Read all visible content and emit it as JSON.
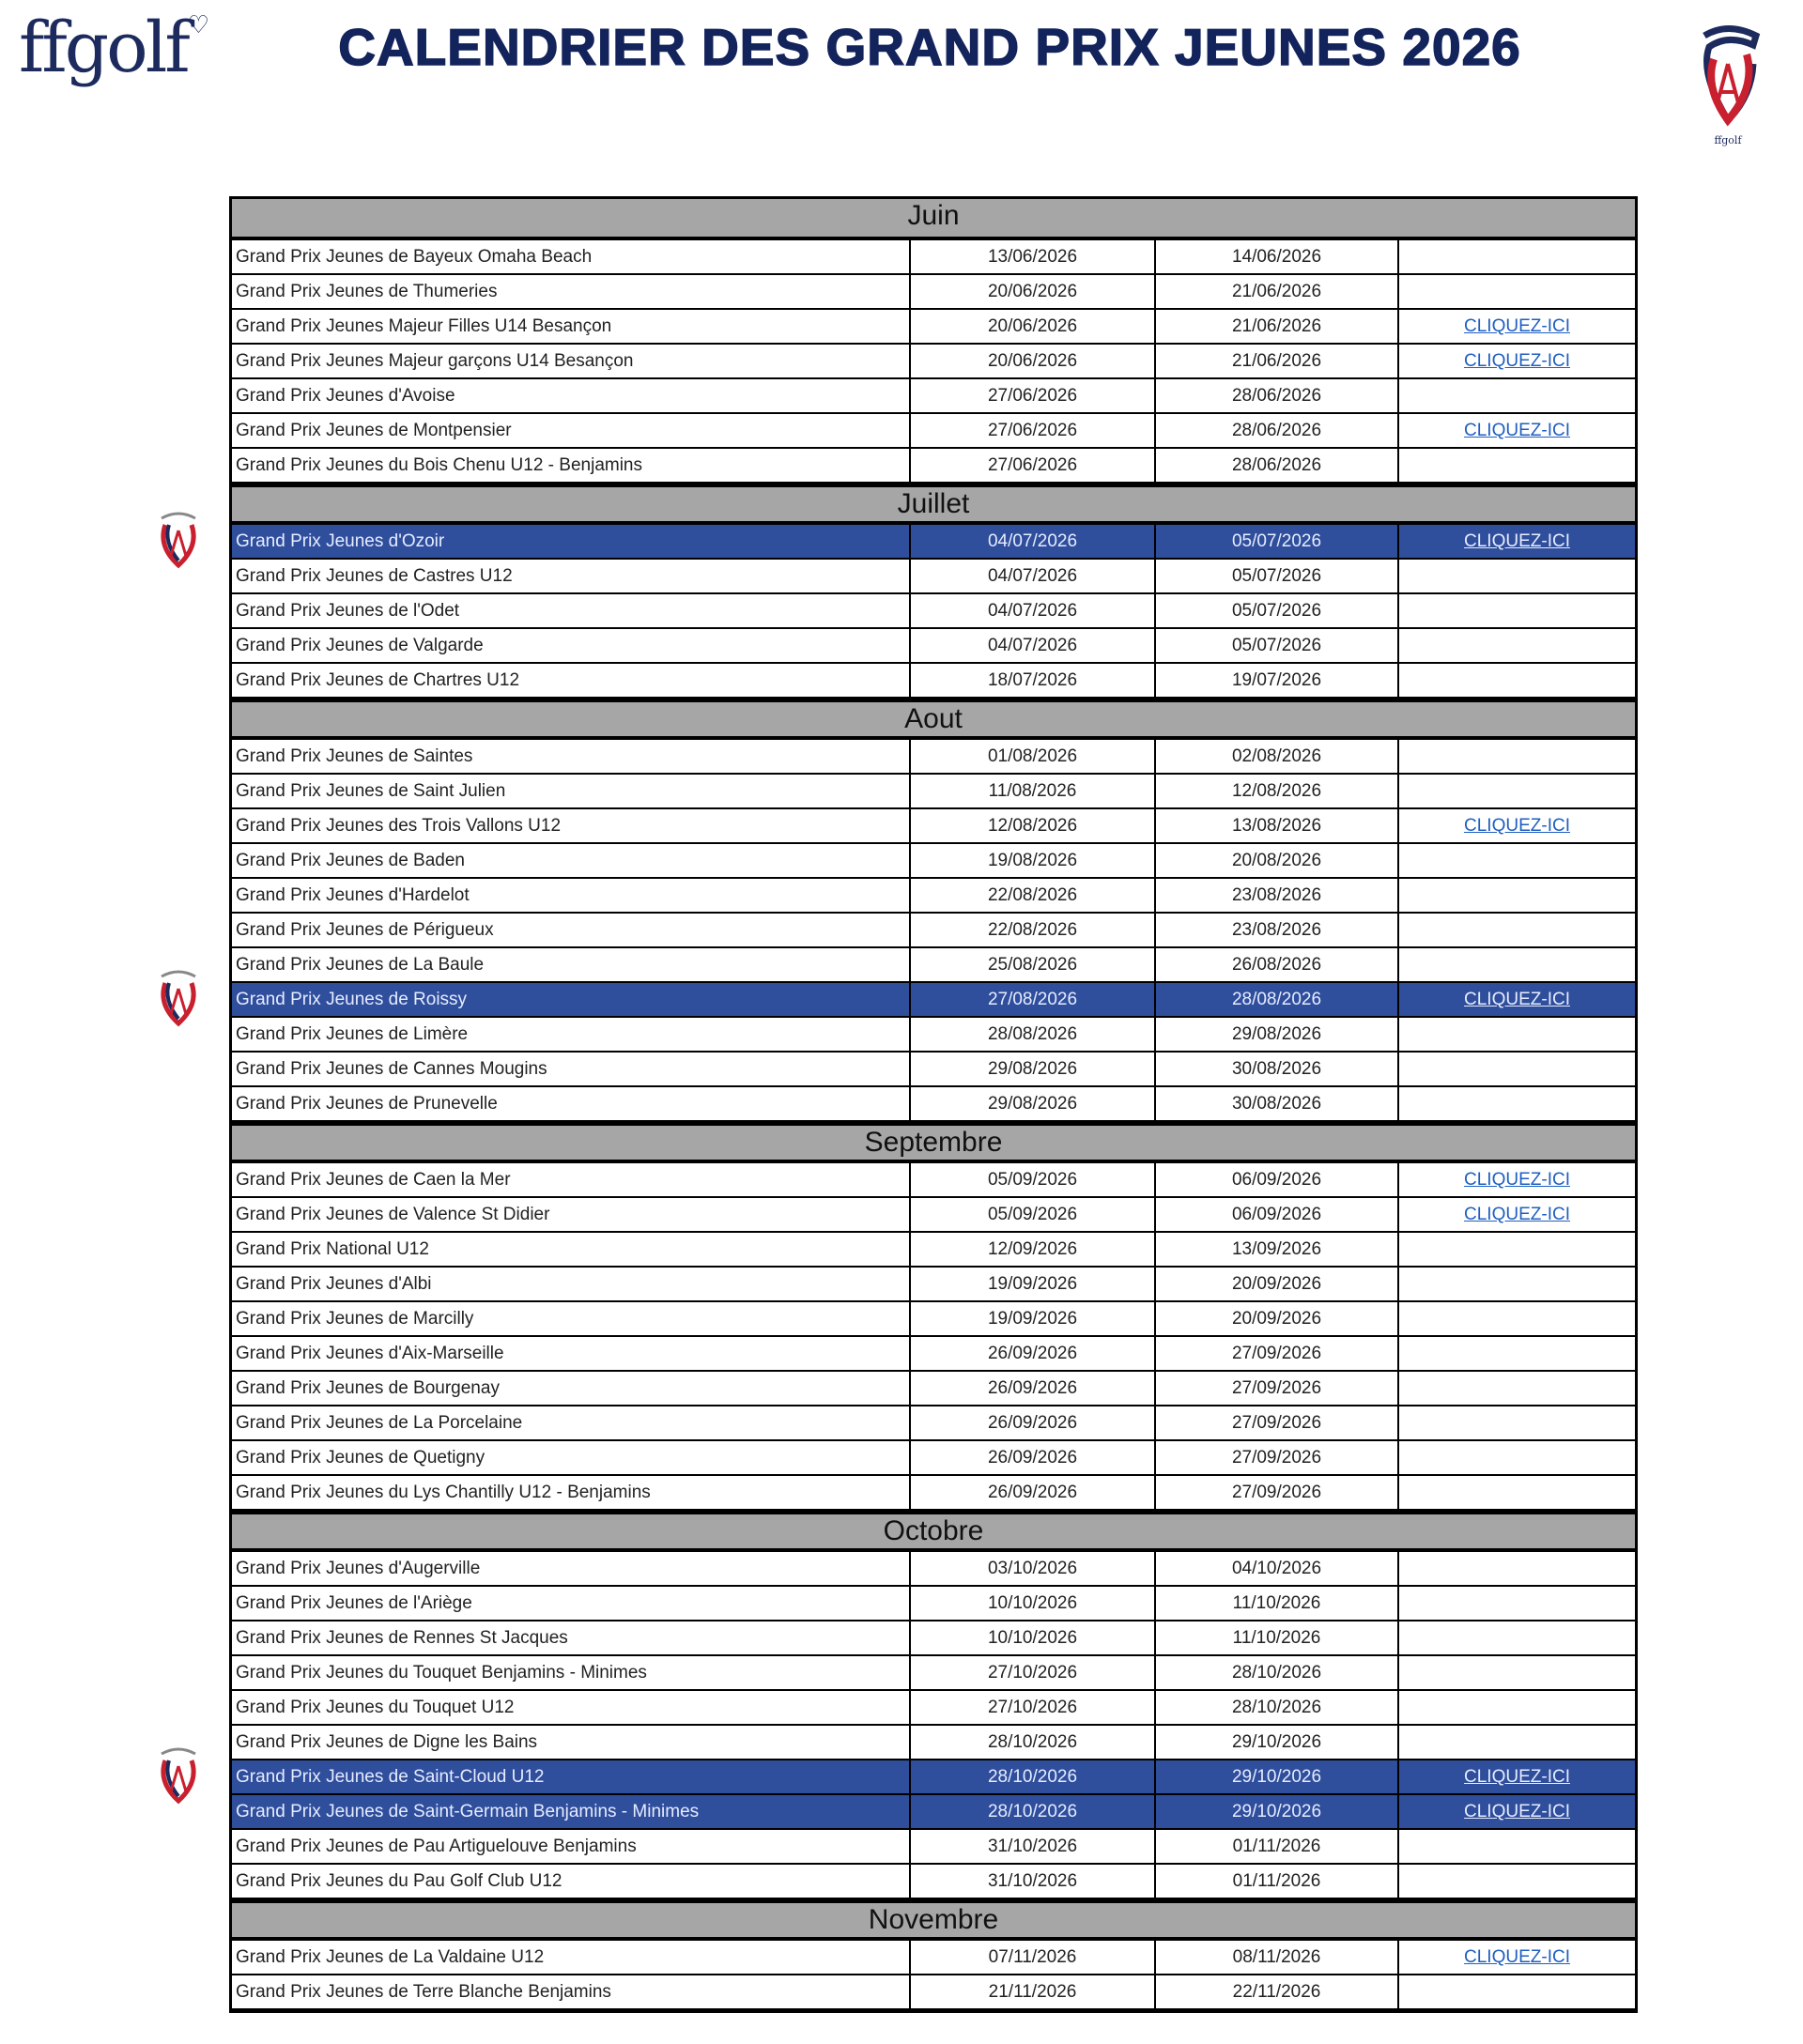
{
  "header": {
    "logo": "ffgolf",
    "title": "CALENDRIER DES GRAND PRIX JEUNES 2026"
  },
  "colors": {
    "title": "#13235b",
    "highlight": "#2f4e9c",
    "month_header": "#a6a6a6",
    "link": "#1f5fc0"
  },
  "link_label": "CLIQUEZ-ICI",
  "months": [
    {
      "name": "Juin",
      "events": [
        {
          "name": "Grand Prix Jeunes de Bayeux Omaha Beach",
          "start": "13/06/2026",
          "end": "14/06/2026",
          "link": false,
          "highlight": false
        },
        {
          "name": "Grand Prix Jeunes de Thumeries",
          "start": "20/06/2026",
          "end": "21/06/2026",
          "link": false,
          "highlight": false
        },
        {
          "name": "Grand Prix Jeunes Majeur Filles U14 Besançon",
          "start": "20/06/2026",
          "end": "21/06/2026",
          "link": true,
          "highlight": false
        },
        {
          "name": "Grand Prix Jeunes Majeur garçons U14 Besançon",
          "start": "20/06/2026",
          "end": "21/06/2026",
          "link": true,
          "highlight": false
        },
        {
          "name": "Grand Prix Jeunes d'Avoise",
          "start": "27/06/2026",
          "end": "28/06/2026",
          "link": false,
          "highlight": false
        },
        {
          "name": "Grand Prix Jeunes de Montpensier",
          "start": "27/06/2026",
          "end": "28/06/2026",
          "link": true,
          "highlight": false
        },
        {
          "name": "Grand Prix Jeunes du Bois Chenu U12 - Benjamins",
          "start": "27/06/2026",
          "end": "28/06/2026",
          "link": false,
          "highlight": false
        }
      ]
    },
    {
      "name": "Juillet",
      "events": [
        {
          "name": "Grand Prix Jeunes d'Ozoir",
          "start": "04/07/2026",
          "end": "05/07/2026",
          "link": true,
          "highlight": true
        },
        {
          "name": "Grand Prix Jeunes de Castres U12",
          "start": "04/07/2026",
          "end": "05/07/2026",
          "link": false,
          "highlight": false
        },
        {
          "name": "Grand Prix Jeunes de l'Odet",
          "start": "04/07/2026",
          "end": "05/07/2026",
          "link": false,
          "highlight": false
        },
        {
          "name": "Grand Prix Jeunes de Valgarde",
          "start": "04/07/2026",
          "end": "05/07/2026",
          "link": false,
          "highlight": false
        },
        {
          "name": "Grand Prix Jeunes de Chartres U12",
          "start": "18/07/2026",
          "end": "19/07/2026",
          "link": false,
          "highlight": false
        }
      ]
    },
    {
      "name": "Aout",
      "events": [
        {
          "name": "Grand Prix Jeunes de Saintes",
          "start": "01/08/2026",
          "end": "02/08/2026",
          "link": false,
          "highlight": false
        },
        {
          "name": "Grand Prix Jeunes de Saint Julien",
          "start": "11/08/2026",
          "end": "12/08/2026",
          "link": false,
          "highlight": false
        },
        {
          "name": "Grand Prix Jeunes des Trois Vallons U12",
          "start": "12/08/2026",
          "end": "13/08/2026",
          "link": true,
          "highlight": false
        },
        {
          "name": "Grand Prix Jeunes de Baden",
          "start": "19/08/2026",
          "end": "20/08/2026",
          "link": false,
          "highlight": false
        },
        {
          "name": "Grand Prix Jeunes d'Hardelot",
          "start": "22/08/2026",
          "end": "23/08/2026",
          "link": false,
          "highlight": false
        },
        {
          "name": "Grand Prix Jeunes de Périgueux",
          "start": "22/08/2026",
          "end": "23/08/2026",
          "link": false,
          "highlight": false
        },
        {
          "name": "Grand Prix Jeunes de La Baule",
          "start": "25/08/2026",
          "end": "26/08/2026",
          "link": false,
          "highlight": false
        },
        {
          "name": "Grand Prix Jeunes de Roissy",
          "start": "27/08/2026",
          "end": "28/08/2026",
          "link": true,
          "highlight": true
        },
        {
          "name": "Grand Prix Jeunes de Limère",
          "start": "28/08/2026",
          "end": "29/08/2026",
          "link": false,
          "highlight": false
        },
        {
          "name": "Grand Prix Jeunes de Cannes Mougins",
          "start": "29/08/2026",
          "end": "30/08/2026",
          "link": false,
          "highlight": false
        },
        {
          "name": "Grand Prix Jeunes de Prunevelle",
          "start": "29/08/2026",
          "end": "30/08/2026",
          "link": false,
          "highlight": false
        }
      ]
    },
    {
      "name": "Septembre",
      "events": [
        {
          "name": "Grand Prix Jeunes de Caen la Mer",
          "start": "05/09/2026",
          "end": "06/09/2026",
          "link": true,
          "highlight": false
        },
        {
          "name": "Grand Prix Jeunes de Valence St Didier",
          "start": "05/09/2026",
          "end": "06/09/2026",
          "link": true,
          "highlight": false
        },
        {
          "name": "Grand Prix National U12",
          "start": "12/09/2026",
          "end": "13/09/2026",
          "link": false,
          "highlight": false
        },
        {
          "name": "Grand Prix Jeunes d'Albi",
          "start": "19/09/2026",
          "end": "20/09/2026",
          "link": false,
          "highlight": false
        },
        {
          "name": "Grand Prix Jeunes de Marcilly",
          "start": "19/09/2026",
          "end": "20/09/2026",
          "link": false,
          "highlight": false
        },
        {
          "name": "Grand Prix Jeunes d'Aix-Marseille",
          "start": "26/09/2026",
          "end": "27/09/2026",
          "link": false,
          "highlight": false
        },
        {
          "name": "Grand Prix Jeunes de Bourgenay",
          "start": "26/09/2026",
          "end": "27/09/2026",
          "link": false,
          "highlight": false
        },
        {
          "name": "Grand Prix Jeunes de La Porcelaine",
          "start": "26/09/2026",
          "end": "27/09/2026",
          "link": false,
          "highlight": false
        },
        {
          "name": "Grand Prix Jeunes de Quetigny",
          "start": "26/09/2026",
          "end": "27/09/2026",
          "link": false,
          "highlight": false
        },
        {
          "name": "Grand Prix Jeunes du Lys Chantilly U12 - Benjamins",
          "start": "26/09/2026",
          "end": "27/09/2026",
          "link": false,
          "highlight": false
        }
      ]
    },
    {
      "name": "Octobre",
      "events": [
        {
          "name": "Grand Prix Jeunes d'Augerville",
          "start": "03/10/2026",
          "end": "04/10/2026",
          "link": false,
          "highlight": false
        },
        {
          "name": "Grand Prix Jeunes de l'Ariège",
          "start": "10/10/2026",
          "end": "11/10/2026",
          "link": false,
          "highlight": false
        },
        {
          "name": "Grand Prix Jeunes de Rennes St Jacques",
          "start": "10/10/2026",
          "end": "11/10/2026",
          "link": false,
          "highlight": false
        },
        {
          "name": "Grand Prix Jeunes du Touquet Benjamins - Minimes",
          "start": "27/10/2026",
          "end": "28/10/2026",
          "link": false,
          "highlight": false
        },
        {
          "name": "Grand Prix Jeunes du Touquet U12",
          "start": "27/10/2026",
          "end": "28/10/2026",
          "link": false,
          "highlight": false
        },
        {
          "name": "Grand Prix Jeunes de Digne les Bains",
          "start": "28/10/2026",
          "end": "29/10/2026",
          "link": false,
          "highlight": false
        },
        {
          "name": "Grand Prix Jeunes de Saint-Cloud U12",
          "start": "28/10/2026",
          "end": "29/10/2026",
          "link": true,
          "highlight": true
        },
        {
          "name": "Grand Prix Jeunes de Saint-Germain Benjamins - Minimes",
          "start": "28/10/2026",
          "end": "29/10/2026",
          "link": true,
          "highlight": true
        },
        {
          "name": "Grand Prix Jeunes de Pau Artiguelouve Benjamins",
          "start": "31/10/2026",
          "end": "01/11/2026",
          "link": false,
          "highlight": false
        },
        {
          "name": "Grand Prix Jeunes du Pau Golf Club U12",
          "start": "31/10/2026",
          "end": "01/11/2026",
          "link": false,
          "highlight": false
        }
      ]
    },
    {
      "name": "Novembre",
      "events": [
        {
          "name": "Grand Prix Jeunes de La Valdaine U12",
          "start": "07/11/2026",
          "end": "08/11/2026",
          "link": true,
          "highlight": false
        },
        {
          "name": "Grand Prix Jeunes de Terre Blanche Benjamins",
          "start": "21/11/2026",
          "end": "22/11/2026",
          "link": false,
          "highlight": false
        }
      ]
    }
  ]
}
